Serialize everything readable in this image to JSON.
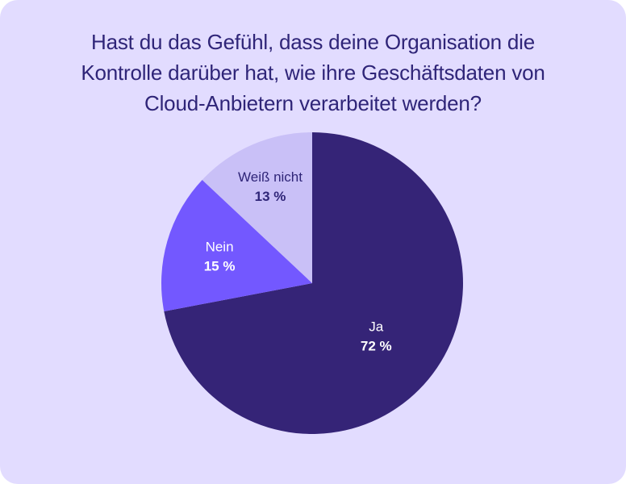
{
  "colors": {
    "background": "#e2dcff",
    "title": "#2f2578"
  },
  "chart_data": {
    "type": "pie",
    "title_lines": [
      "Hast du das Gefühl, dass deine Organisation die",
      "Kontrolle darüber hat, wie ihre Geschäftsdaten von",
      "Cloud-Anbietern verarbeitet werden?"
    ],
    "slices": [
      {
        "label": "Ja",
        "value": 72,
        "value_label": "72 %",
        "color": "#352477",
        "text_color": "#ffffff"
      },
      {
        "label": "Nein",
        "value": 15,
        "value_label": "15 %",
        "color": "#7358ff",
        "text_color": "#ffffff"
      },
      {
        "label": "Weiß nicht",
        "value": 13,
        "value_label": "13 %",
        "color": "#c9c0f7",
        "text_color": "#2f2578"
      }
    ],
    "start": "12 o'clock",
    "direction": "clockwise"
  }
}
